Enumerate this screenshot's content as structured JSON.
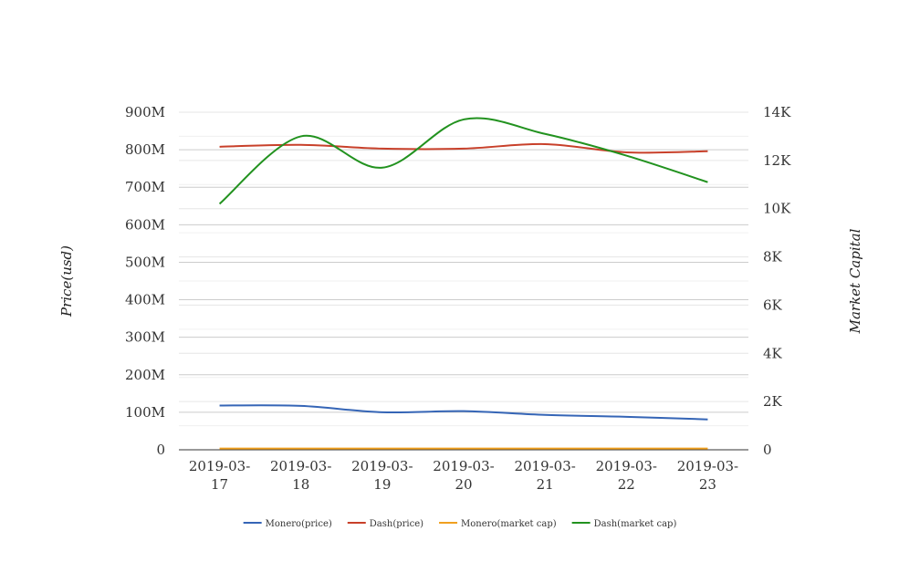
{
  "chart_data": {
    "type": "line",
    "categories": [
      "2019-03-17",
      "2019-03-18",
      "2019-03-19",
      "2019-03-20",
      "2019-03-21",
      "2019-03-22",
      "2019-03-23"
    ],
    "category_labels": [
      [
        "2019-03-",
        "17"
      ],
      [
        "2019-03-",
        "18"
      ],
      [
        "2019-03-",
        "19"
      ],
      [
        "2019-03-",
        "20"
      ],
      [
        "2019-03-",
        "21"
      ],
      [
        "2019-03-",
        "22"
      ],
      [
        "2019-03-",
        "23"
      ]
    ],
    "y_left": {
      "label": "Price(usd)",
      "min": 0,
      "max": 900000000,
      "ticks": [
        0,
        100000000,
        200000000,
        300000000,
        400000000,
        500000000,
        600000000,
        700000000,
        800000000,
        900000000
      ],
      "tick_labels": [
        "0",
        "100M",
        "200M",
        "300M",
        "400M",
        "500M",
        "600M",
        "700M",
        "800M",
        "900M"
      ]
    },
    "y_right": {
      "label": "Market Capital",
      "min": 0,
      "max": 14000,
      "ticks": [
        0,
        2000,
        4000,
        6000,
        8000,
        10000,
        12000,
        14000
      ],
      "tick_labels": [
        "0",
        "2K",
        "4K",
        "6K",
        "8K",
        "10K",
        "12K",
        "14K"
      ]
    },
    "grid": true,
    "legend_position": "bottom",
    "series": [
      {
        "name": "Monero(price)",
        "axis": "left",
        "color": "#3565b6",
        "values": [
          118000000,
          117000000,
          100000000,
          103000000,
          93000000,
          88000000,
          81000000
        ]
      },
      {
        "name": "Dash(price)",
        "axis": "left",
        "color": "#c8402a",
        "values": [
          808000000,
          813000000,
          803000000,
          803000000,
          815000000,
          793000000,
          796000000
        ]
      },
      {
        "name": "Monero(market cap)",
        "axis": "right",
        "color": "#f0a020",
        "values": [
          50,
          50,
          50,
          50,
          50,
          50,
          50
        ]
      },
      {
        "name": "Dash(market cap)",
        "axis": "right",
        "color": "#22921f",
        "values": [
          10200,
          13000,
          11700,
          13700,
          13100,
          12200,
          11100
        ]
      }
    ]
  }
}
